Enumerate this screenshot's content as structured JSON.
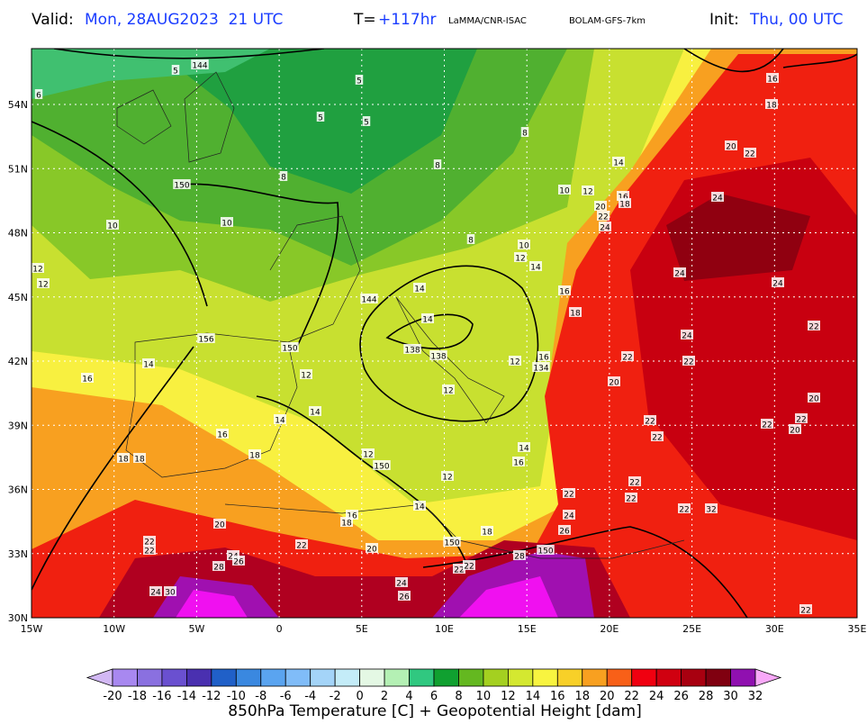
{
  "header": {
    "valid_label": "Valid:",
    "valid_value": "Mon, 28AUG2023  21 UTC",
    "forecast_label": "T=",
    "forecast_value": "+117hr",
    "source": "LaMMA/CNR-ISAC",
    "model": "BOLAM-GFS-7km",
    "init_label": "Init:",
    "init_value": "Thu, 00 UTC"
  },
  "map": {
    "lat_labels": [
      "30N",
      "33N",
      "36N",
      "39N",
      "42N",
      "45N",
      "48N",
      "51N",
      "54N"
    ],
    "lon_labels": [
      "15W",
      "10W",
      "5W",
      "0",
      "5E",
      "10E",
      "15E",
      "20E",
      "25E",
      "30E",
      "35E"
    ],
    "contour_labels": [
      "144",
      "5",
      "6",
      "5",
      "5",
      "5",
      "8",
      "8",
      "8",
      "150",
      "10",
      "10",
      "12",
      "12",
      "8",
      "10",
      "12",
      "14",
      "14",
      "10",
      "12",
      "16",
      "18",
      "20",
      "22",
      "24",
      "20",
      "22",
      "16",
      "18",
      "24",
      "24",
      "24",
      "22",
      "144",
      "14",
      "14",
      "138",
      "138",
      "16",
      "18",
      "24",
      "22",
      "22",
      "12",
      "16",
      "134",
      "20",
      "12",
      "150",
      "156",
      "14",
      "16",
      "12",
      "14",
      "14",
      "16",
      "18",
      "12",
      "150",
      "12",
      "14",
      "16",
      "18",
      "18",
      "22",
      "22",
      "22",
      "22",
      "20",
      "20",
      "22",
      "22",
      "22",
      "24",
      "26",
      "22",
      "32",
      "16",
      "18",
      "20",
      "22",
      "20",
      "18",
      "150",
      "150",
      "28",
      "22",
      "22",
      "22",
      "22",
      "24",
      "26",
      "28",
      "24",
      "30",
      "24",
      "26",
      "22",
      "14"
    ]
  },
  "colorbar": {
    "labels": [
      "-20",
      "-18",
      "-16",
      "-14",
      "-12",
      "-10",
      "-8",
      "-6",
      "-4",
      "-2",
      "0",
      "2",
      "4",
      "6",
      "8",
      "10",
      "12",
      "14",
      "16",
      "18",
      "20",
      "22",
      "24",
      "26",
      "28",
      "30",
      "32"
    ],
    "colors": [
      "#d2b8f4",
      "#a888f0",
      "#8a70e0",
      "#6a50d0",
      "#4a30b0",
      "#2060c8",
      "#3a88e0",
      "#5aa4f0",
      "#80bcf8",
      "#a4d4f8",
      "#c4ecf8",
      "#e4f8e4",
      "#b4f0b4",
      "#30c880",
      "#10a030",
      "#64b820",
      "#a4d020",
      "#d4e830",
      "#f8f440",
      "#f8d028",
      "#f8a020",
      "#f86018",
      "#f00010",
      "#d00010",
      "#a80010",
      "#800010",
      "#9010b0",
      "#f010f0",
      "#f8a8f8"
    ],
    "title": "850hPa Temperature [C] + Geopotential Height [dam]"
  }
}
